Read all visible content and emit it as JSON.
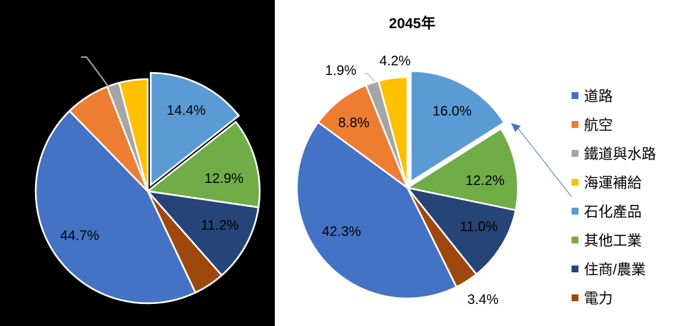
{
  "chart_data": [
    {
      "type": "pie",
      "title": "",
      "start_angle": 0,
      "direction": "clockwise",
      "exploded": [
        "石化產品"
      ],
      "categories": [
        "石化產品",
        "其他工業",
        "住商/農業",
        "電力",
        "道路",
        "航空",
        "鐵道與水路",
        "海運補給"
      ],
      "values": [
        14.4,
        12.9,
        11.2,
        4.5,
        44.7,
        6.4,
        1.8,
        4.1
      ],
      "labels_visible": [
        "14.4%",
        "12.9%",
        "11.2%",
        "",
        "44.7%",
        "",
        "",
        ""
      ],
      "note": "values without visible labels are estimated from slice angles",
      "background": "#000000"
    },
    {
      "type": "pie",
      "title": "2045年",
      "start_angle": 0,
      "direction": "clockwise",
      "exploded": [
        "石化產品"
      ],
      "categories": [
        "石化產品",
        "其他工業",
        "住商/農業",
        "電力",
        "道路",
        "航空",
        "鐵道與水路",
        "海運補給"
      ],
      "values": [
        16.0,
        12.2,
        11.0,
        3.4,
        42.3,
        8.8,
        1.9,
        4.2
      ],
      "labels_visible": [
        "16.0%",
        "12.2%",
        "11.0%",
        "3.4%",
        "42.3%",
        "8.8%",
        "1.9%",
        "4.2%"
      ],
      "legend_position": "right",
      "background": "#ffffff"
    }
  ],
  "right_chart": {
    "title": "2045年"
  },
  "legend": [
    {
      "label": "道路",
      "color": "#4472C4"
    },
    {
      "label": "航空",
      "color": "#ED7D31"
    },
    {
      "label": "鐵道與水路",
      "color": "#A5A5A5"
    },
    {
      "label": "海運補給",
      "color": "#FFC000"
    },
    {
      "label": "石化產品",
      "color": "#5B9BD5"
    },
    {
      "label": "其他工業",
      "color": "#70AD47"
    },
    {
      "label": "住商/農業",
      "color": "#264478"
    },
    {
      "label": "電力",
      "color": "#9E480E"
    }
  ],
  "colors": {
    "石化產品": "#5B9BD5",
    "其他工業": "#70AD47",
    "住商/農業": "#264478",
    "電力": "#9E480E",
    "道路": "#4472C4",
    "航空": "#ED7D31",
    "鐵道與水路": "#A5A5A5",
    "海運補給": "#FFC000"
  },
  "annotation": {
    "arrow_color": "#4472C4",
    "from_legend": "石化產品",
    "to_slice": "石化產品"
  }
}
